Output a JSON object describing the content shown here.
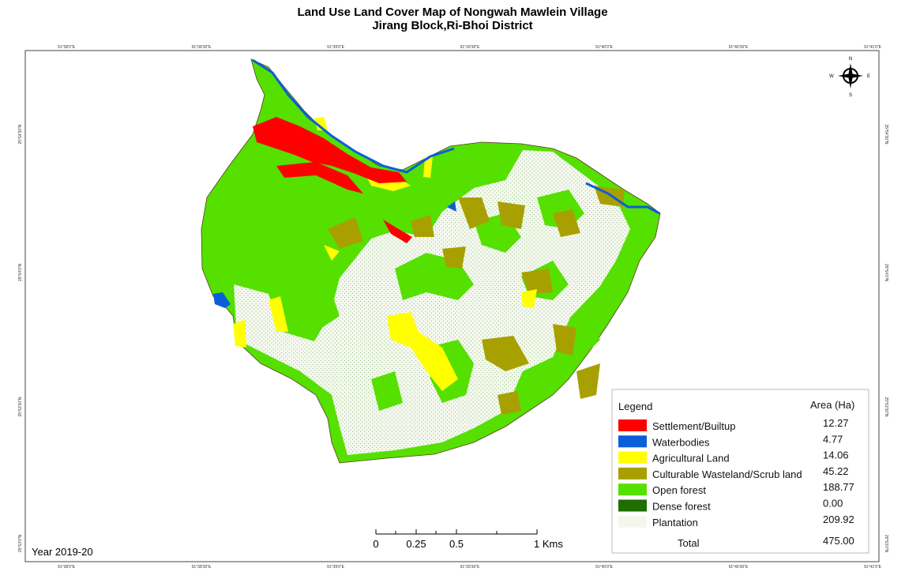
{
  "title": "Land Use Land Cover Map of Nongwah Mawlein Village",
  "subtitle": "Jirang Block,Ri-Bhoi District",
  "longitude_labels": [
    "91°38'0\"E",
    "91°38'30\"E",
    "91°39'0\"E",
    "91°39'30\"E",
    "91°40'0\"E",
    "91°40'30\"E",
    "91°41'0\"E"
  ],
  "latitude_labels": [
    "25°54'30\"N",
    "25°54'0\"N",
    "25°53'30\"N",
    "25°53'0\"N"
  ],
  "compass": {
    "north": "N",
    "south": "S",
    "east": "E",
    "west": "W"
  },
  "legend": {
    "title": "Legend",
    "area_header": "Area (Ha)",
    "items": [
      {
        "name": "Settlement/Builtup",
        "area": "12.27",
        "color": "#ff0000"
      },
      {
        "name": "Waterbodies",
        "area": "4.77",
        "color": "#0a5fd8"
      },
      {
        "name": "Agricultural Land",
        "area": "14.06",
        "color": "#ffff00"
      },
      {
        "name": "Culturable Wasteland/Scrub land",
        "area": "45.22",
        "color": "#a8a000"
      },
      {
        "name": "Open forest",
        "area": "188.77",
        "color": "#55e000"
      },
      {
        "name": "Dense  forest",
        "area": "0.00",
        "color": "#1e6e00"
      },
      {
        "name": "Plantation",
        "area": "209.92",
        "color": "#f4f8ec"
      }
    ],
    "total_label": "Total",
    "total": "475.00"
  },
  "scale_labels": [
    "0",
    "0.25",
    "0.5",
    "1 Kms"
  ],
  "year": "Year 2019-20"
}
